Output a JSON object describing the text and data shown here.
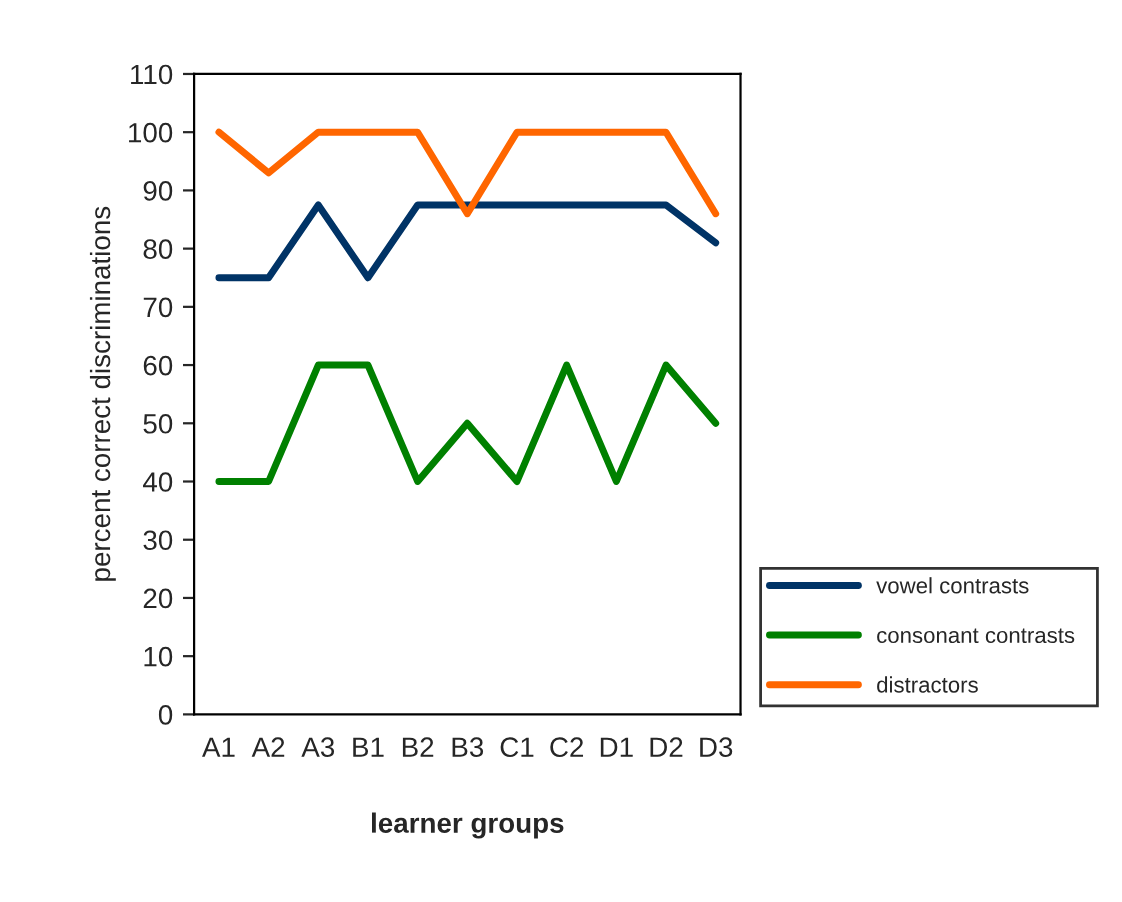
{
  "chart_data": {
    "type": "line",
    "xlabel": "learner groups",
    "ylabel": "percent correct discriminations",
    "categories": [
      "A1",
      "A2",
      "A3",
      "B1",
      "B2",
      "B3",
      "C1",
      "C2",
      "D1",
      "D2",
      "D3"
    ],
    "series": [
      {
        "name": "vowel contrasts",
        "color": "#003366",
        "values": [
          75,
          75,
          87.5,
          75,
          87.5,
          87.5,
          87.5,
          87.5,
          87.5,
          87.5,
          81
        ]
      },
      {
        "name": "consonant contrasts",
        "color": "#008000",
        "values": [
          40,
          40,
          60,
          60,
          40,
          50,
          40,
          60,
          40,
          60,
          50
        ]
      },
      {
        "name": "distractors",
        "color": "#ff6600",
        "values": [
          100,
          93,
          100,
          100,
          100,
          86,
          100,
          100,
          100,
          100,
          86
        ]
      }
    ],
    "ylim": [
      0,
      110
    ],
    "yticks": [
      0,
      10,
      20,
      30,
      40,
      50,
      60,
      70,
      80,
      90,
      100,
      110
    ],
    "grid": false,
    "legend": "right",
    "marker": "none",
    "line_style": "solid"
  }
}
